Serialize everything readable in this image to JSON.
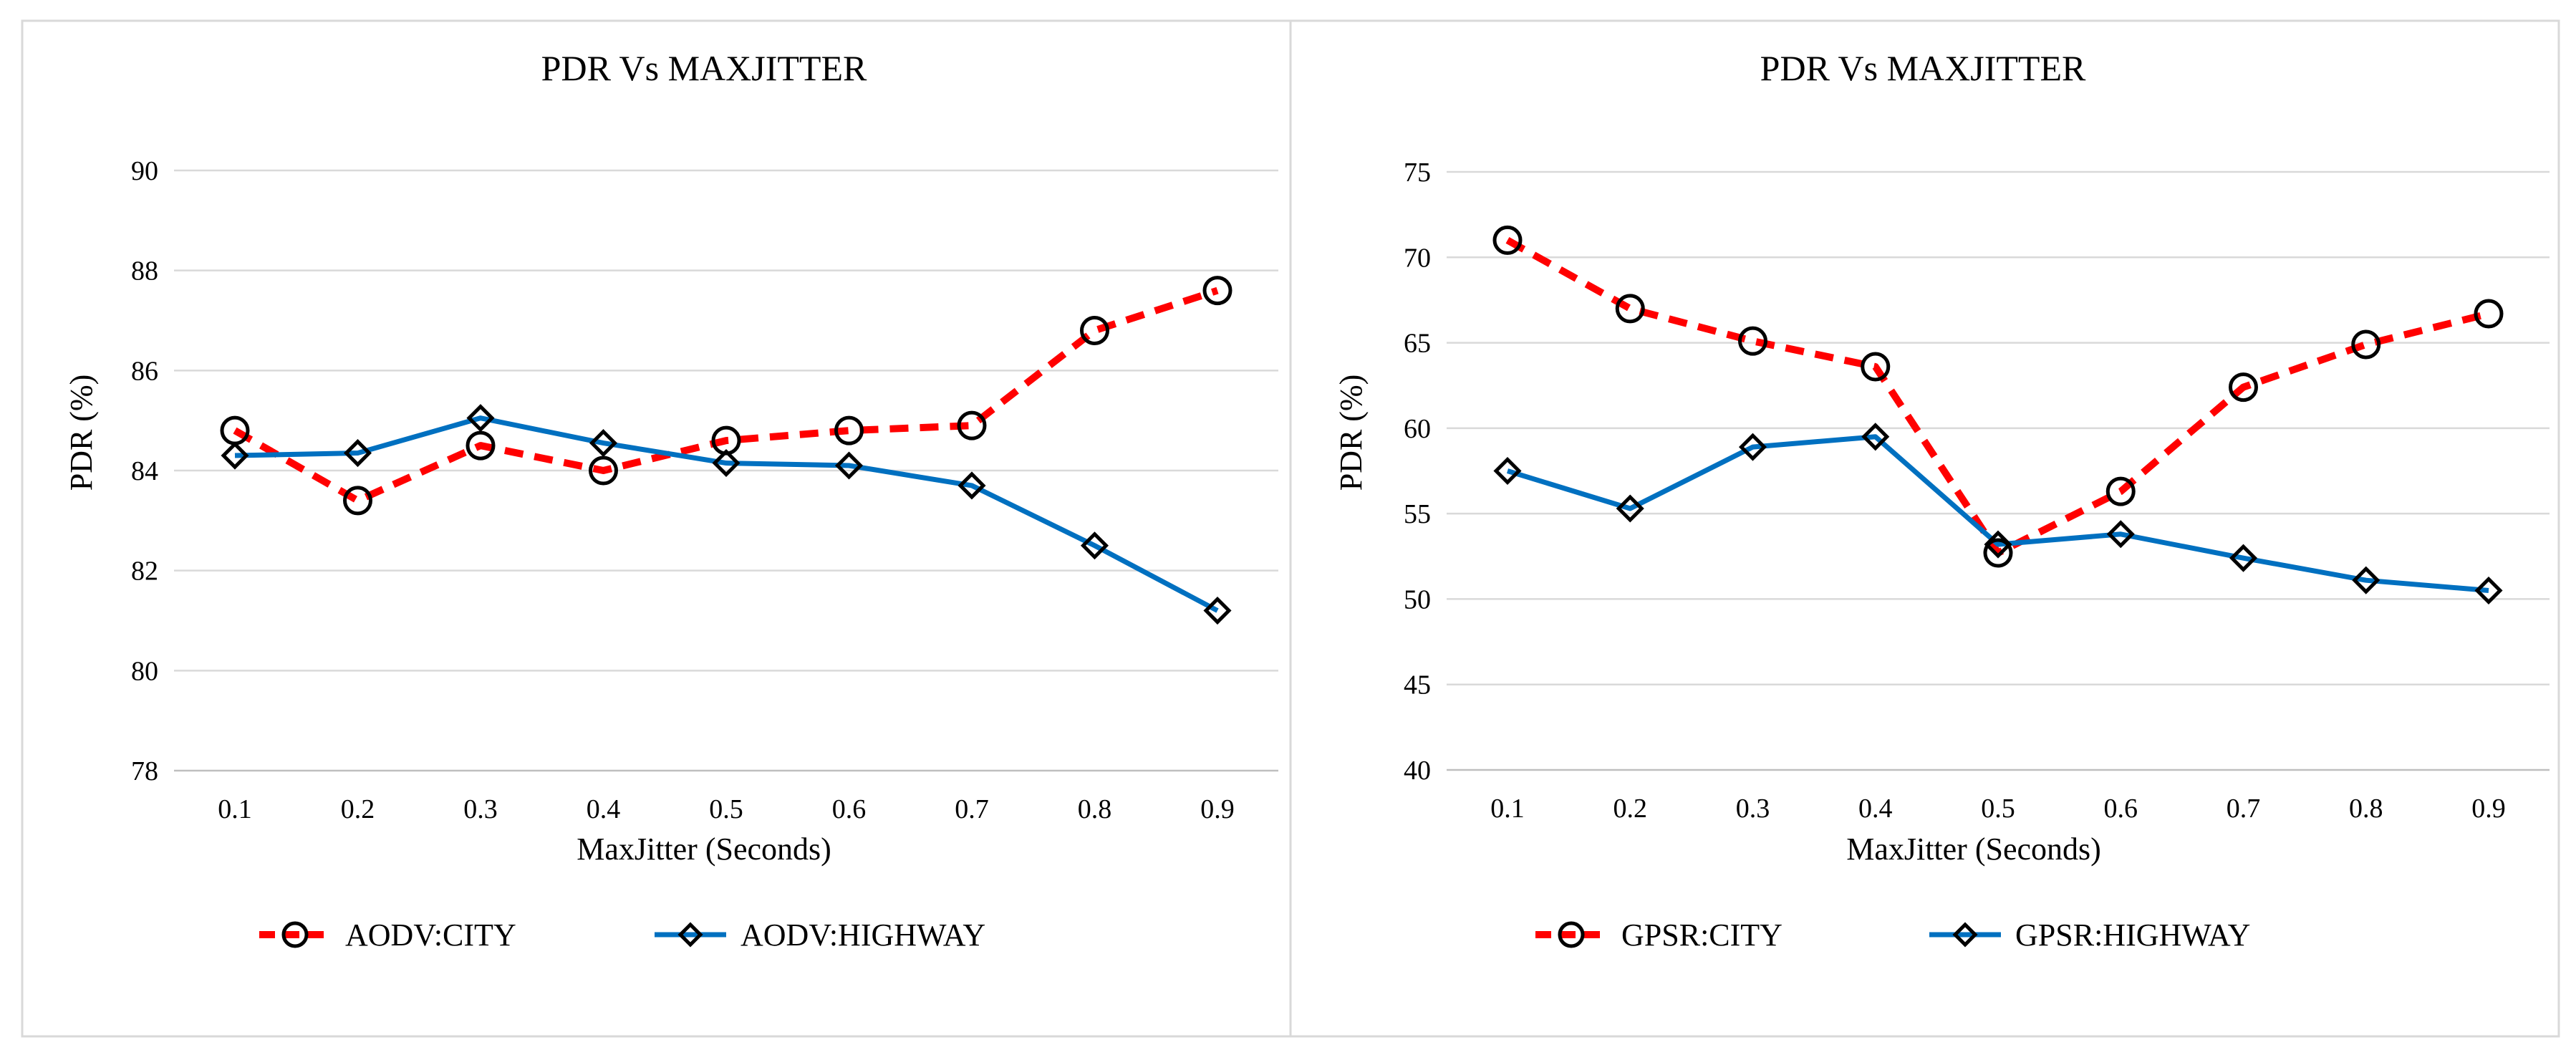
{
  "chart_data": [
    {
      "type": "line",
      "title": "PDR Vs MAXJITTER",
      "xlabel": "MaxJitter (Seconds)",
      "ylabel": "PDR (%)",
      "categories": [
        "0.1",
        "0.2",
        "0.3",
        "0.4",
        "0.5",
        "0.6",
        "0.7",
        "0.8",
        "0.9"
      ],
      "ylim": [
        78,
        90
      ],
      "yticks": [
        "78",
        "80",
        "82",
        "84",
        "86",
        "88",
        "90"
      ],
      "grid": true,
      "legend_position": "bottom",
      "series": [
        {
          "name": "AODV:CITY",
          "color": "#ff0000",
          "dash": true,
          "marker": "circle",
          "values": [
            84.8,
            83.4,
            84.5,
            84.0,
            84.6,
            84.8,
            84.9,
            86.8,
            87.6
          ]
        },
        {
          "name": "AODV:HIGHWAY",
          "color": "#0070c0",
          "dash": false,
          "marker": "diamond",
          "values": [
            84.3,
            84.35,
            85.05,
            84.55,
            84.15,
            84.1,
            83.7,
            82.5,
            81.2
          ]
        }
      ]
    },
    {
      "type": "line",
      "title": "PDR Vs MAXJITTER",
      "xlabel": "MaxJitter (Seconds)",
      "ylabel": "PDR (%)",
      "categories": [
        "0.1",
        "0.2",
        "0.3",
        "0.4",
        "0.5",
        "0.6",
        "0.7",
        "0.8",
        "0.9"
      ],
      "ylim": [
        40,
        75
      ],
      "yticks": [
        "40",
        "45",
        "50",
        "55",
        "60",
        "65",
        "70",
        "75"
      ],
      "grid": true,
      "legend_position": "bottom",
      "series": [
        {
          "name": "GPSR:CITY",
          "color": "#ff0000",
          "dash": true,
          "marker": "circle",
          "values": [
            71.0,
            67.0,
            65.1,
            63.6,
            52.7,
            56.3,
            62.4,
            64.9,
            66.7
          ]
        },
        {
          "name": "GPSR:HIGHWAY",
          "color": "#0070c0",
          "dash": false,
          "marker": "diamond",
          "values": [
            57.5,
            55.3,
            58.9,
            59.5,
            53.2,
            53.8,
            52.4,
            51.1,
            50.5
          ]
        }
      ]
    }
  ]
}
